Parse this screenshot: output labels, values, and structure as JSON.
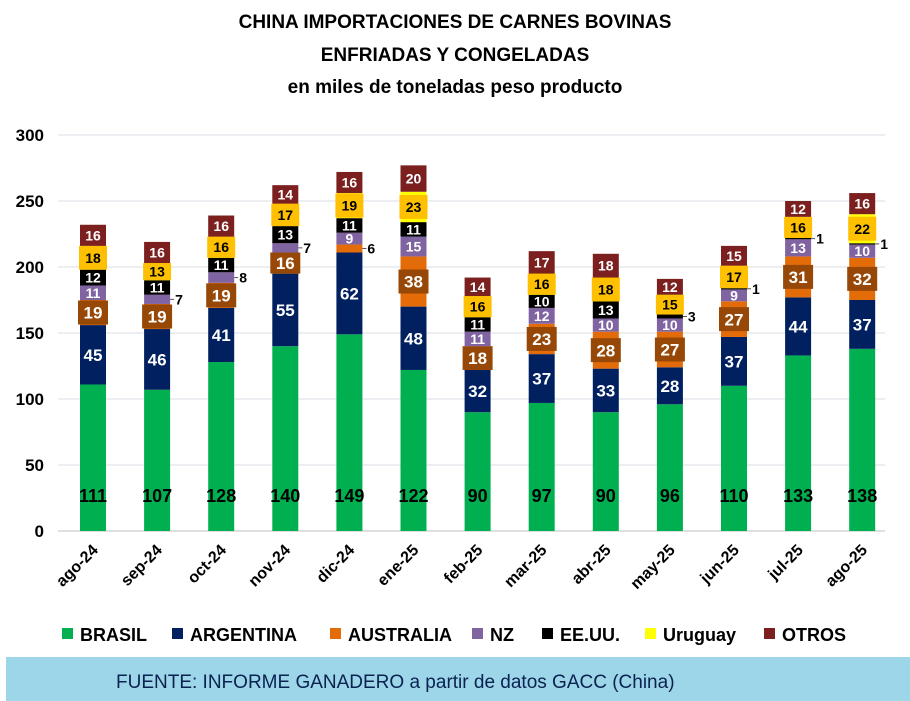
{
  "chart_data": {
    "type": "bar",
    "stacked": true,
    "title": [
      "CHINA IMPORTACIONES DE CARNES BOVINAS",
      "ENFRIADAS  Y CONGELADAS",
      "en miles de toneladas peso producto"
    ],
    "xlabel": "",
    "ylabel": "",
    "ylim": [
      0,
      300
    ],
    "yticks": [
      0,
      50,
      100,
      150,
      200,
      250,
      300
    ],
    "grid": true,
    "legend_position": "bottom",
    "categories": [
      "ago-24",
      "sep-24",
      "oct-24",
      "nov-24",
      "dic-24",
      "ene-25",
      "feb-25",
      "mar-25",
      "abr-25",
      "may-25",
      "jun-25",
      "jul-25",
      "ago-25"
    ],
    "series": [
      {
        "name": "BRASIL",
        "color": "#00b050",
        "values": [
          111,
          107,
          128,
          140,
          149,
          122,
          90,
          97,
          90,
          96,
          110,
          133,
          138
        ]
      },
      {
        "name": "ARGENTINA",
        "color": "#002060",
        "values": [
          45,
          46,
          41,
          55,
          62,
          48,
          32,
          37,
          33,
          28,
          37,
          44,
          37
        ]
      },
      {
        "name": "AUSTRALIA",
        "color": "#e36c09",
        "values": [
          19,
          19,
          19,
          16,
          6,
          38,
          18,
          23,
          28,
          27,
          27,
          31,
          32
        ]
      },
      {
        "name": "NZ",
        "color": "#8064a2",
        "values": [
          11,
          7,
          8,
          7,
          9,
          15,
          11,
          12,
          10,
          10,
          9,
          13,
          10
        ]
      },
      {
        "name": "EE.UU.",
        "color": "#000000",
        "values": [
          12,
          11,
          11,
          13,
          11,
          11,
          11,
          10,
          13,
          3,
          1,
          1,
          1
        ]
      },
      {
        "name": "Uruguay",
        "color": "#ffff00",
        "values": [
          18,
          13,
          16,
          17,
          19,
          23,
          16,
          16,
          18,
          15,
          17,
          16,
          22
        ]
      },
      {
        "name": "OTROS",
        "color": "#7b1f1f",
        "values": [
          16,
          16,
          16,
          14,
          16,
          20,
          14,
          17,
          18,
          12,
          15,
          12,
          16
        ]
      }
    ]
  },
  "footer": "FUENTE: INFORME GANADERO a partir de datos GACC (China)"
}
